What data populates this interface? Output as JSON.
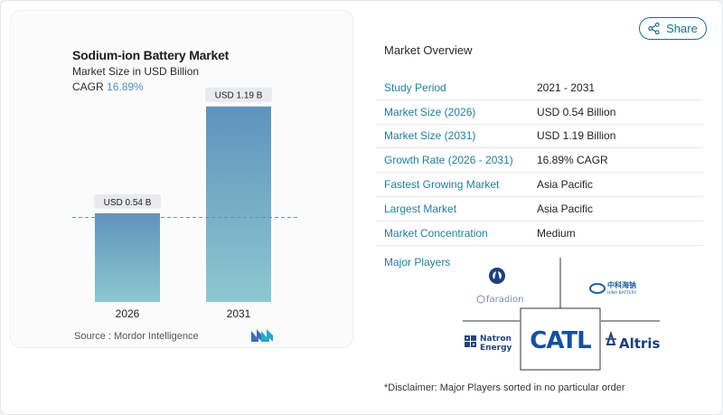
{
  "share": {
    "label": "Share",
    "icon": "share-icon"
  },
  "chart": {
    "title": "Sodium-ion Battery Market",
    "subtitle": "Market Size in USD Billion",
    "cagr_label": "CAGR",
    "cagr_value": "16.89%",
    "source": "Source :  Mordor Intelligence"
  },
  "chart_data": {
    "type": "bar",
    "title": "Sodium-ion Battery Market",
    "ylabel": "Market Size in USD Billion",
    "categories": [
      "2026",
      "2031"
    ],
    "values": [
      0.54,
      1.19
    ],
    "data_labels": [
      "USD 0.54 B",
      "USD 1.19 B"
    ],
    "ylim": [
      0,
      1.25
    ],
    "grid": false,
    "bar_gradient": [
      "#5f93bd",
      "#8cc8d0"
    ]
  },
  "overview": {
    "title": "Market Overview",
    "rows": [
      {
        "key": "Study Period",
        "value": "2021 - 2031"
      },
      {
        "key": "Market Size (2026)",
        "value": "USD 0.54 Billion"
      },
      {
        "key": "Market Size (2031)",
        "value": "USD 1.19 Billion"
      },
      {
        "key": "Growth Rate (2026 - 2031)",
        "value": "16.89% CAGR"
      },
      {
        "key": "Fastest Growing Market",
        "value": "Asia Pacific"
      },
      {
        "key": "Largest Market",
        "value": "Asia Pacific"
      },
      {
        "key": "Market Concentration",
        "value": "Medium"
      }
    ]
  },
  "players": {
    "title": "Major Players",
    "logos": {
      "faradion": "faradion",
      "hina": "HINA BATTERY",
      "natron_1": "Natron",
      "natron_2": "Energy",
      "catl": "CATL",
      "altris": "Altris"
    }
  },
  "disclaimer": "*Disclaimer: Major Players sorted in no particular order"
}
